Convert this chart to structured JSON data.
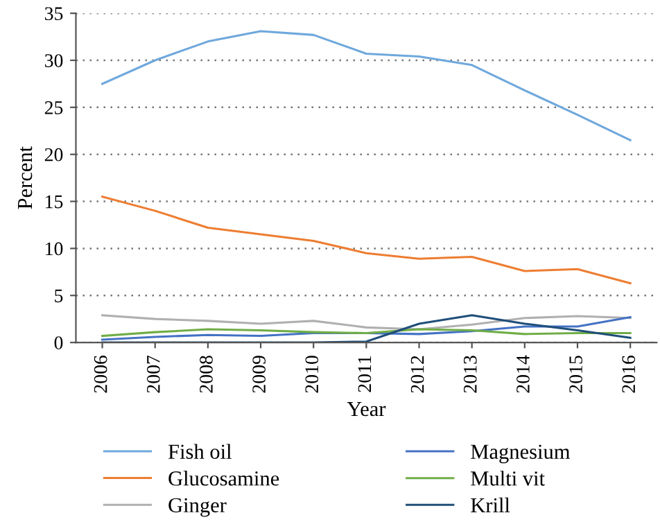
{
  "chart_data": {
    "type": "line",
    "xlabel": "Year",
    "ylabel": "Percent",
    "categories": [
      "2006",
      "2007",
      "2008",
      "2009",
      "2010",
      "2011",
      "2012",
      "2013",
      "2014",
      "2015",
      "2016"
    ],
    "series": [
      {
        "name": "Fish oil",
        "color": "#6fa8dc",
        "values": [
          27.5,
          30,
          32,
          33.1,
          32.7,
          30.7,
          30.4,
          29.5,
          26.8,
          24.2,
          21.5
        ]
      },
      {
        "name": "Glucosamine",
        "color": "#ed7d31",
        "values": [
          15.5,
          14,
          12.2,
          11.5,
          10.8,
          9.5,
          8.9,
          9.1,
          7.6,
          7.8,
          6.3
        ]
      },
      {
        "name": "Ginger",
        "color": "#b0b0b0",
        "values": [
          2.9,
          2.5,
          2.3,
          2.0,
          2.3,
          1.6,
          1.4,
          1.9,
          2.6,
          2.8,
          2.6
        ]
      },
      {
        "name": "Magnesium",
        "color": "#4472c4",
        "values": [
          0.3,
          0.6,
          0.8,
          0.7,
          1.0,
          1.0,
          0.9,
          1.2,
          1.7,
          1.7,
          2.7
        ]
      },
      {
        "name": "Multi vit",
        "color": "#70ad47",
        "values": [
          0.7,
          1.1,
          1.4,
          1.3,
          1.1,
          1.0,
          1.4,
          1.3,
          0.9,
          1.0,
          1.0
        ]
      },
      {
        "name": "Krill",
        "color": "#1f4e79",
        "values": [
          0.0,
          0.0,
          0.0,
          0.0,
          0.0,
          0.1,
          2.0,
          2.9,
          2.0,
          1.3,
          0.5
        ]
      }
    ],
    "ylim": [
      0,
      35
    ],
    "yticks": [
      0,
      5,
      10,
      15,
      20,
      25,
      30,
      35
    ],
    "grid": "y",
    "legend": "bottom",
    "line_style": "solid",
    "marker": "none"
  }
}
